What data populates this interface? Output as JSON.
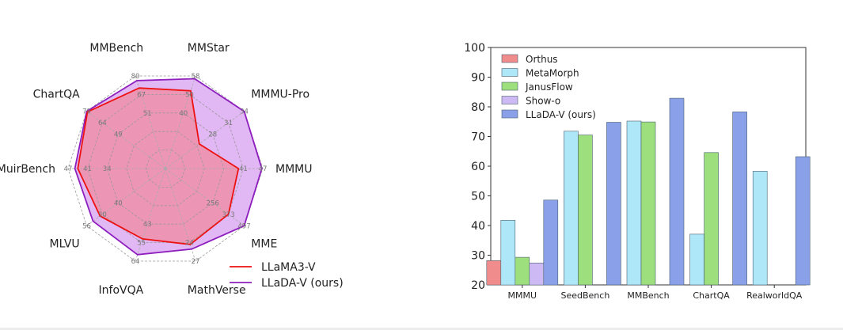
{
  "chart_data": [
    {
      "type": "radar",
      "axes": [
        "MMStar",
        "MMMU-Pro",
        "MMMU",
        "MME",
        "MathVerse",
        "InfoVQA",
        "MLVU",
        "MuirBench",
        "ChartQA",
        "MMBench"
      ],
      "axis_tick_labels": [
        [
          "40",
          "50",
          "58"
        ],
        [
          "28",
          "31",
          "34"
        ],
        [
          "41",
          "47"
        ],
        [
          "256",
          "373",
          "497"
        ],
        [
          "24",
          "27"
        ],
        [
          "43",
          "55",
          "64"
        ],
        [
          "40",
          "50",
          "56"
        ],
        [
          "34",
          "41",
          "47"
        ],
        [
          "49",
          "64",
          "79"
        ],
        [
          "51",
          "67",
          "80"
        ]
      ],
      "ring_fractions": [
        0.2,
        0.4,
        0.6,
        0.8,
        1.0
      ],
      "series": [
        {
          "name": "LLaMA3-V",
          "color": "#ee1111",
          "fill": "#f08aa0",
          "values": [
            0.84,
            0.43,
            0.75,
            0.8,
            0.82,
            0.76,
            0.83,
            0.9,
            0.99,
            0.87
          ]
        },
        {
          "name": "LLaDA-V (ours)",
          "color": "#8e1fbe",
          "fill": "#d79ff0",
          "values": [
            0.97,
            1.0,
            0.99,
            1.0,
            0.87,
            0.93,
            0.92,
            0.93,
            1.0,
            0.95
          ]
        }
      ],
      "legend": [
        {
          "label": "LLaMA3-V",
          "color": "#ee1111"
        },
        {
          "label": "LLaDA-V (ours)",
          "color": "#8e1fbe"
        }
      ],
      "legend_placement": "bottom-right",
      "grid": true
    },
    {
      "type": "bar",
      "categories": [
        "MMMU",
        "SeedBench",
        "MMBench",
        "ChartQA",
        "RealworldQA"
      ],
      "series": [
        {
          "name": "Orthus",
          "color": "#f08c8c",
          "values": [
            28.2,
            null,
            null,
            null,
            null
          ]
        },
        {
          "name": "MetaMorph",
          "color": "#aee8f8",
          "values": [
            41.8,
            71.8,
            75.2,
            37.1,
            58.3
          ]
        },
        {
          "name": "JanusFlow",
          "color": "#9ddf7c",
          "values": [
            29.3,
            70.5,
            74.9,
            64.6,
            null
          ]
        },
        {
          "name": "Show-o",
          "color": "#cdbaf5",
          "values": [
            27.4,
            null,
            null,
            null,
            null
          ]
        },
        {
          "name": "LLaDA-V (ours)",
          "color": "#8aa0e8",
          "values": [
            48.6,
            74.8,
            82.9,
            78.3,
            63.2
          ]
        }
      ],
      "ylim": [
        20,
        100
      ],
      "yticks": [
        "20",
        "30",
        "40",
        "50",
        "60",
        "70",
        "80",
        "90",
        "100"
      ],
      "xlabel": "",
      "ylabel": "",
      "legend_placement": "top-left",
      "grid": false
    }
  ]
}
